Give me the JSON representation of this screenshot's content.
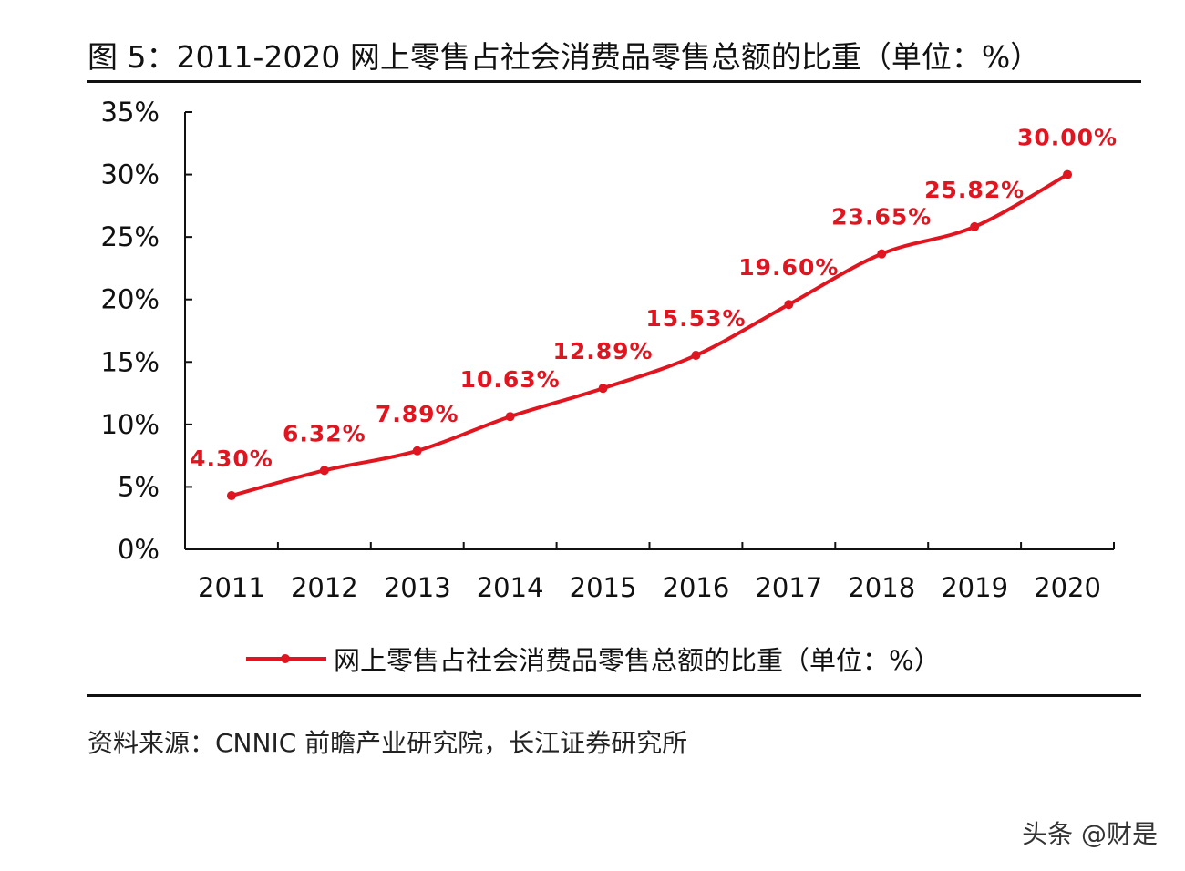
{
  "title": "图 5：2011-2020 网上零售占社会消费品零售总额的比重（单位：%）",
  "source": "资料来源：CNNIC 前瞻产业研究院，长江证券研究所",
  "watermark": "头条 @财是",
  "colors": {
    "series": "#e0151f",
    "axis": "#111111"
  },
  "chart_data": {
    "type": "line",
    "title": "图 5：2011-2020 网上零售占社会消费品零售总额的比重（单位：%）",
    "categories": [
      "2011",
      "2012",
      "2013",
      "2014",
      "2015",
      "2016",
      "2017",
      "2018",
      "2019",
      "2020"
    ],
    "series": [
      {
        "name": "网上零售占社会消费品零售总额的比重（单位：%）",
        "values": [
          4.3,
          6.32,
          7.89,
          10.63,
          12.89,
          15.53,
          19.6,
          23.65,
          25.82,
          30.0
        ],
        "labels": [
          "4.30%",
          "6.32%",
          "7.89%",
          "10.63%",
          "12.89%",
          "15.53%",
          "19.60%",
          "23.65%",
          "25.82%",
          "30.00%"
        ]
      }
    ],
    "yticks": [
      "0%",
      "5%",
      "10%",
      "15%",
      "20%",
      "25%",
      "30%",
      "35%"
    ],
    "ylim": [
      0,
      35
    ],
    "grid": false,
    "legend": "bottom"
  }
}
